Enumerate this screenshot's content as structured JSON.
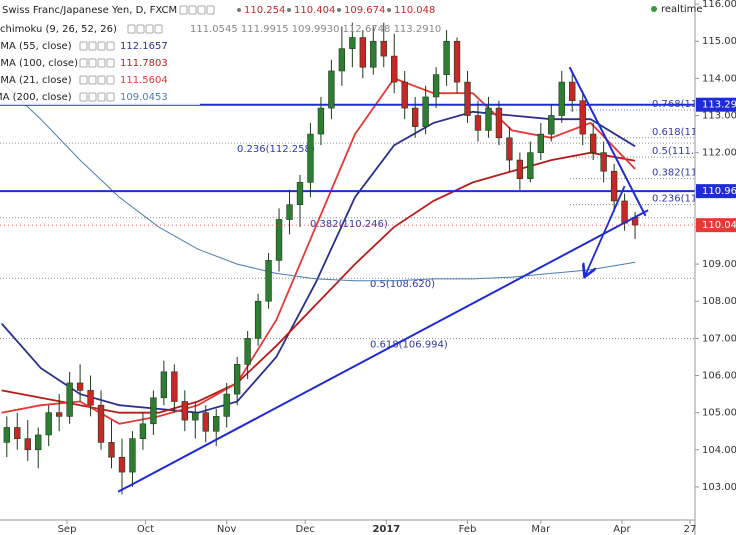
{
  "chart_data": {
    "type": "candlestick",
    "title": "Swiss Franc/Japanese Yen, D, FXCM",
    "ohlc_header": {
      "open": 110.254,
      "high": 110.404,
      "low": 109.674,
      "close": 110.048
    },
    "ichimoku": {
      "name": "chimoku (9, 26, 52, 26)",
      "readout": "111.0545 111.9915 109.9930 112.6748 113.2910"
    },
    "realtime": "realtime",
    "x": [
      -23,
      -19,
      -15,
      -11,
      -7,
      -3,
      1,
      5,
      9,
      13,
      17,
      21,
      25,
      29,
      33,
      37,
      41,
      45,
      49,
      53,
      57,
      61,
      65,
      69,
      73,
      77,
      81,
      85,
      89,
      93,
      97,
      101,
      105,
      109,
      113,
      117,
      121,
      125,
      129,
      133,
      137,
      141,
      145,
      149,
      153,
      157,
      161,
      165,
      169,
      173,
      177,
      181,
      185,
      189,
      193,
      197,
      201,
      205,
      209,
      213,
      217
    ],
    "open": [
      104.2,
      104.6,
      104.3,
      104.0,
      104.4,
      105.0,
      104.9,
      105.8,
      105.6,
      105.2,
      104.2,
      103.8,
      103.4,
      104.3,
      104.7,
      105.4,
      106.1,
      105.3,
      104.8,
      105.0,
      104.5,
      104.9,
      105.5,
      106.3,
      107.0,
      108.0,
      109.1,
      110.2,
      110.6,
      111.2,
      112.5,
      113.2,
      114.2,
      114.8,
      115.1,
      114.3,
      115.0,
      114.6,
      113.9,
      113.2,
      112.7,
      113.5,
      114.1,
      115.0,
      113.9,
      113.0,
      112.6,
      113.2,
      112.4,
      111.8,
      111.3,
      112.0,
      112.5,
      113.0,
      113.9,
      113.4,
      112.5,
      112.0,
      111.5,
      110.7,
      110.254
    ],
    "high": [
      104.9,
      105.0,
      104.8,
      104.6,
      105.2,
      105.5,
      106.1,
      106.3,
      106.0,
      105.6,
      104.8,
      104.3,
      104.5,
      105.0,
      105.6,
      106.4,
      106.3,
      105.6,
      105.3,
      105.2,
      105.1,
      105.8,
      106.5,
      107.2,
      108.2,
      109.3,
      110.5,
      111.0,
      111.4,
      112.8,
      113.5,
      114.5,
      115.4,
      115.5,
      115.3,
      115.4,
      115.5,
      115.2,
      114.2,
      113.5,
      113.8,
      114.3,
      115.3,
      115.1,
      114.2,
      113.4,
      113.5,
      113.4,
      112.7,
      112.0,
      112.3,
      112.8,
      113.3,
      114.2,
      114.2,
      113.6,
      112.8,
      112.3,
      111.7,
      110.9,
      110.404
    ],
    "low": [
      103.8,
      104.0,
      103.7,
      103.5,
      104.1,
      104.5,
      104.7,
      105.3,
      104.9,
      104.0,
      103.5,
      102.8,
      103.0,
      104.0,
      104.4,
      105.2,
      105.0,
      104.5,
      104.3,
      104.2,
      104.1,
      104.6,
      105.2,
      105.9,
      106.8,
      107.8,
      108.8,
      109.8,
      110.0,
      110.8,
      112.2,
      112.9,
      113.8,
      114.3,
      114.0,
      114.1,
      114.3,
      113.6,
      112.9,
      112.4,
      112.5,
      113.2,
      113.8,
      113.6,
      112.8,
      112.3,
      112.4,
      112.2,
      111.5,
      111.0,
      111.2,
      111.8,
      112.3,
      112.8,
      113.1,
      112.2,
      111.8,
      111.2,
      110.4,
      109.9,
      109.674
    ],
    "close": [
      104.6,
      104.3,
      104.0,
      104.4,
      105.0,
      104.9,
      105.8,
      105.6,
      105.2,
      104.2,
      103.8,
      103.4,
      104.3,
      104.7,
      105.4,
      106.1,
      105.3,
      104.8,
      105.0,
      104.5,
      104.9,
      105.5,
      106.3,
      107.0,
      108.0,
      109.1,
      110.2,
      110.6,
      111.2,
      112.5,
      113.2,
      114.2,
      114.8,
      115.1,
      114.3,
      115.0,
      114.6,
      113.9,
      113.2,
      112.7,
      113.5,
      114.1,
      115.0,
      113.9,
      113.0,
      112.6,
      113.2,
      112.4,
      111.8,
      111.3,
      112.0,
      112.5,
      113.0,
      113.9,
      113.4,
      112.5,
      112.0,
      111.5,
      110.7,
      110.1,
      110.048
    ],
    "up_color": "#2e7d32",
    "down_color": "#c62828",
    "xlim": [
      -25.6,
      239.9
    ],
    "xticks": [
      {
        "value": 0,
        "label": "Sep"
      },
      {
        "value": 30,
        "label": "Oct"
      },
      {
        "value": 61,
        "label": "Nov"
      },
      {
        "value": 91,
        "label": "Dec"
      },
      {
        "value": 122,
        "label": "2017"
      },
      {
        "value": 153,
        "label": "Feb"
      },
      {
        "value": 181,
        "label": "Mar"
      },
      {
        "value": 212,
        "label": "Apr"
      },
      {
        "value": 238,
        "label": "27"
      }
    ],
    "ylim": [
      102.11,
      116.11
    ],
    "yticks": [
      {
        "value": 103,
        "label": "103.000"
      },
      {
        "value": 104,
        "label": "104.000"
      },
      {
        "value": 105,
        "label": "105.000"
      },
      {
        "value": 106,
        "label": "106.000"
      },
      {
        "value": 107,
        "label": "107.000"
      },
      {
        "value": 108,
        "label": "108.000"
      },
      {
        "value": 109,
        "label": "109.000"
      },
      {
        "value": 110,
        "label": "110.000"
      },
      {
        "value": 111,
        "label": "111.000"
      },
      {
        "value": 112,
        "label": "112.000"
      },
      {
        "value": 113,
        "label": "113.000"
      },
      {
        "value": 114,
        "label": "114.000"
      },
      {
        "value": 115,
        "label": "115.000"
      },
      {
        "value": 116,
        "label": "116.000"
      }
    ],
    "indicators": [
      {
        "name": "EMA (55, close)",
        "value": 112.1657,
        "color": "#2b2f8f",
        "x": [
          -25,
          -10,
          5,
          20,
          35,
          50,
          65,
          80,
          95,
          110,
          125,
          140,
          155,
          170,
          185,
          200,
          217
        ],
        "values": [
          107.4,
          106.2,
          105.5,
          105.2,
          105.1,
          105.0,
          105.3,
          106.5,
          108.5,
          110.8,
          112.2,
          112.8,
          113.1,
          113.0,
          112.9,
          112.9,
          112.17
        ]
      },
      {
        "name": "EMA (100, close)",
        "value": 111.7803,
        "color": "#b71c1c",
        "x": [
          -25,
          -10,
          5,
          20,
          35,
          50,
          65,
          80,
          95,
          110,
          125,
          140,
          155,
          170,
          185,
          200,
          217
        ],
        "values": [
          105.6,
          105.4,
          105.2,
          105.0,
          105.0,
          105.3,
          105.8,
          106.8,
          107.9,
          109.0,
          110.0,
          110.7,
          111.2,
          111.5,
          111.8,
          112.0,
          111.78
        ]
      },
      {
        "name": "EMA (21, close)",
        "value": 111.5604,
        "color": "#e53935",
        "x": [
          -25,
          -10,
          5,
          20,
          35,
          50,
          65,
          80,
          95,
          110,
          125,
          140,
          155,
          170,
          185,
          200,
          217
        ],
        "values": [
          105.0,
          105.2,
          105.3,
          104.7,
          104.9,
          105.2,
          105.8,
          107.5,
          110.0,
          112.5,
          114.0,
          113.6,
          113.6,
          112.6,
          112.4,
          112.8,
          111.56
        ]
      },
      {
        "name": "MA (200, close)",
        "value": 109.0453,
        "color": "#4a7fb0",
        "x": [
          -25,
          -10,
          5,
          20,
          35,
          50,
          65,
          80,
          95,
          110,
          125,
          140,
          155,
          170,
          185,
          200,
          217
        ],
        "values": [
          113.9,
          112.9,
          111.8,
          110.8,
          110.0,
          109.4,
          109.0,
          108.75,
          108.6,
          108.55,
          108.55,
          108.6,
          108.6,
          108.65,
          108.75,
          108.85,
          109.05
        ]
      }
    ],
    "hlines": [
      {
        "value": 113.291,
        "color": "#1e2bd6"
      },
      {
        "value": 110.964,
        "color": "#1e2bd6"
      }
    ],
    "last_price": {
      "value": 110.048,
      "color": "#e53935"
    },
    "fib_left": [
      {
        "value": 112.258,
        "label": "0.236(112.258)"
      },
      {
        "value": 110.246,
        "label": "0.382(110.246)"
      },
      {
        "value": 108.62,
        "label": "0.5(108.620)"
      },
      {
        "value": 106.994,
        "label": "0.618(106.994)"
      }
    ],
    "fib_right": [
      {
        "value": 113.15,
        "label": "0.768(11"
      },
      {
        "value": 112.4,
        "label": "0.618(11"
      },
      {
        "value": 111.88,
        "label": "0.5(111.9"
      },
      {
        "value": 111.3,
        "label": "0.382(11"
      },
      {
        "value": 110.6,
        "label": "0.236(11"
      }
    ],
    "trendlines": [
      {
        "x": [
          19.5,
          222
        ],
        "values": [
          102.87,
          110.45
        ]
      },
      {
        "x": [
          192,
          221
        ],
        "values": [
          114.3,
          110.3
        ]
      }
    ],
    "arrow": {
      "x": [
        213,
        198
      ],
      "values": [
        111.1,
        108.7
      ]
    }
  }
}
